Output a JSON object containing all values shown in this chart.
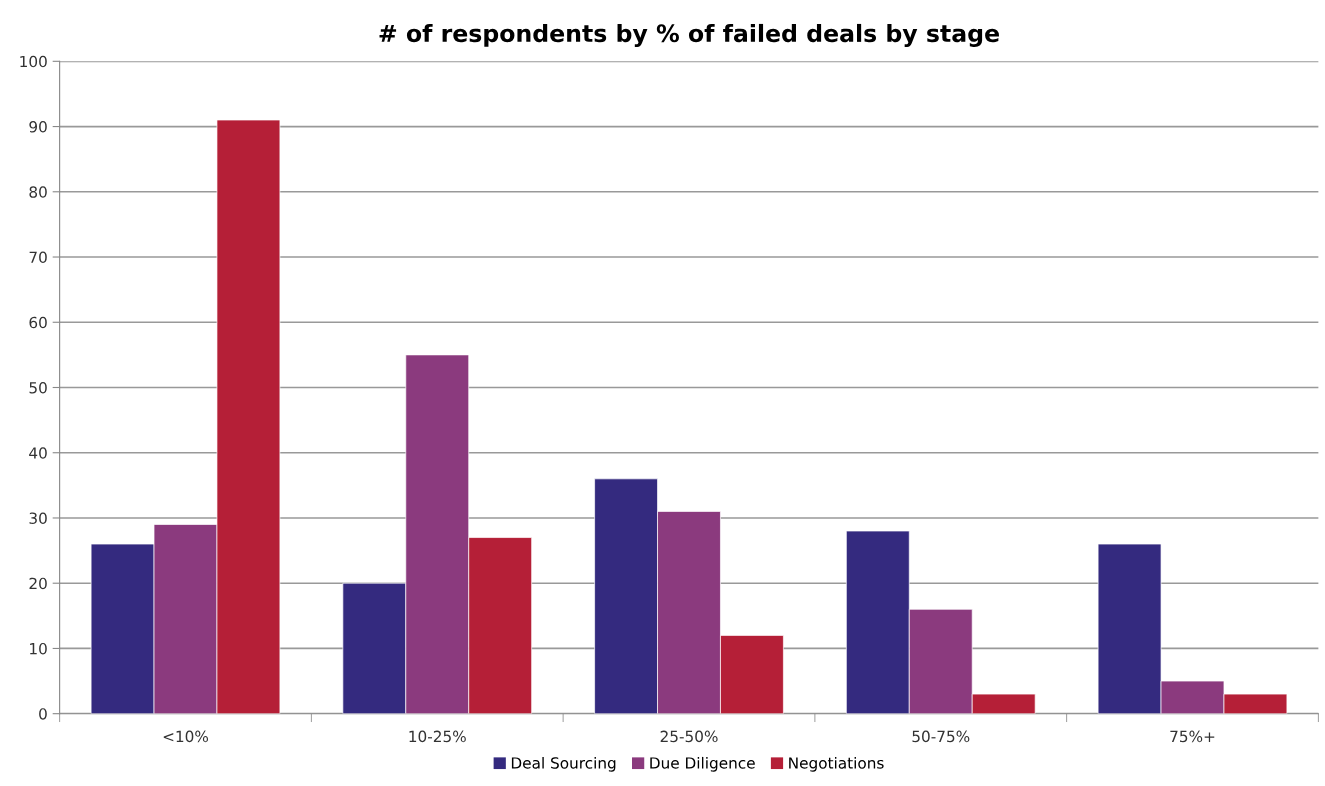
{
  "chart_data": {
    "type": "bar",
    "title": "# of respondents by % of failed deals by stage",
    "categories": [
      "<10%",
      "10-25%",
      "25-50%",
      "50-75%",
      "75%+"
    ],
    "series": [
      {
        "name": "Deal Sourcing",
        "color": "#342a7f",
        "values": [
          26,
          20,
          36,
          28,
          26
        ]
      },
      {
        "name": "Due Diligence",
        "color": "#8b3a7e",
        "values": [
          29,
          55,
          31,
          16,
          5
        ]
      },
      {
        "name": "Negotiations",
        "color": "#b51f37",
        "values": [
          91,
          27,
          12,
          3,
          3
        ]
      }
    ],
    "ylim": [
      0,
      100
    ],
    "yticks": [
      0,
      10,
      20,
      30,
      40,
      50,
      60,
      70,
      80,
      90,
      100
    ],
    "grid": "y",
    "legend": "bottom"
  }
}
